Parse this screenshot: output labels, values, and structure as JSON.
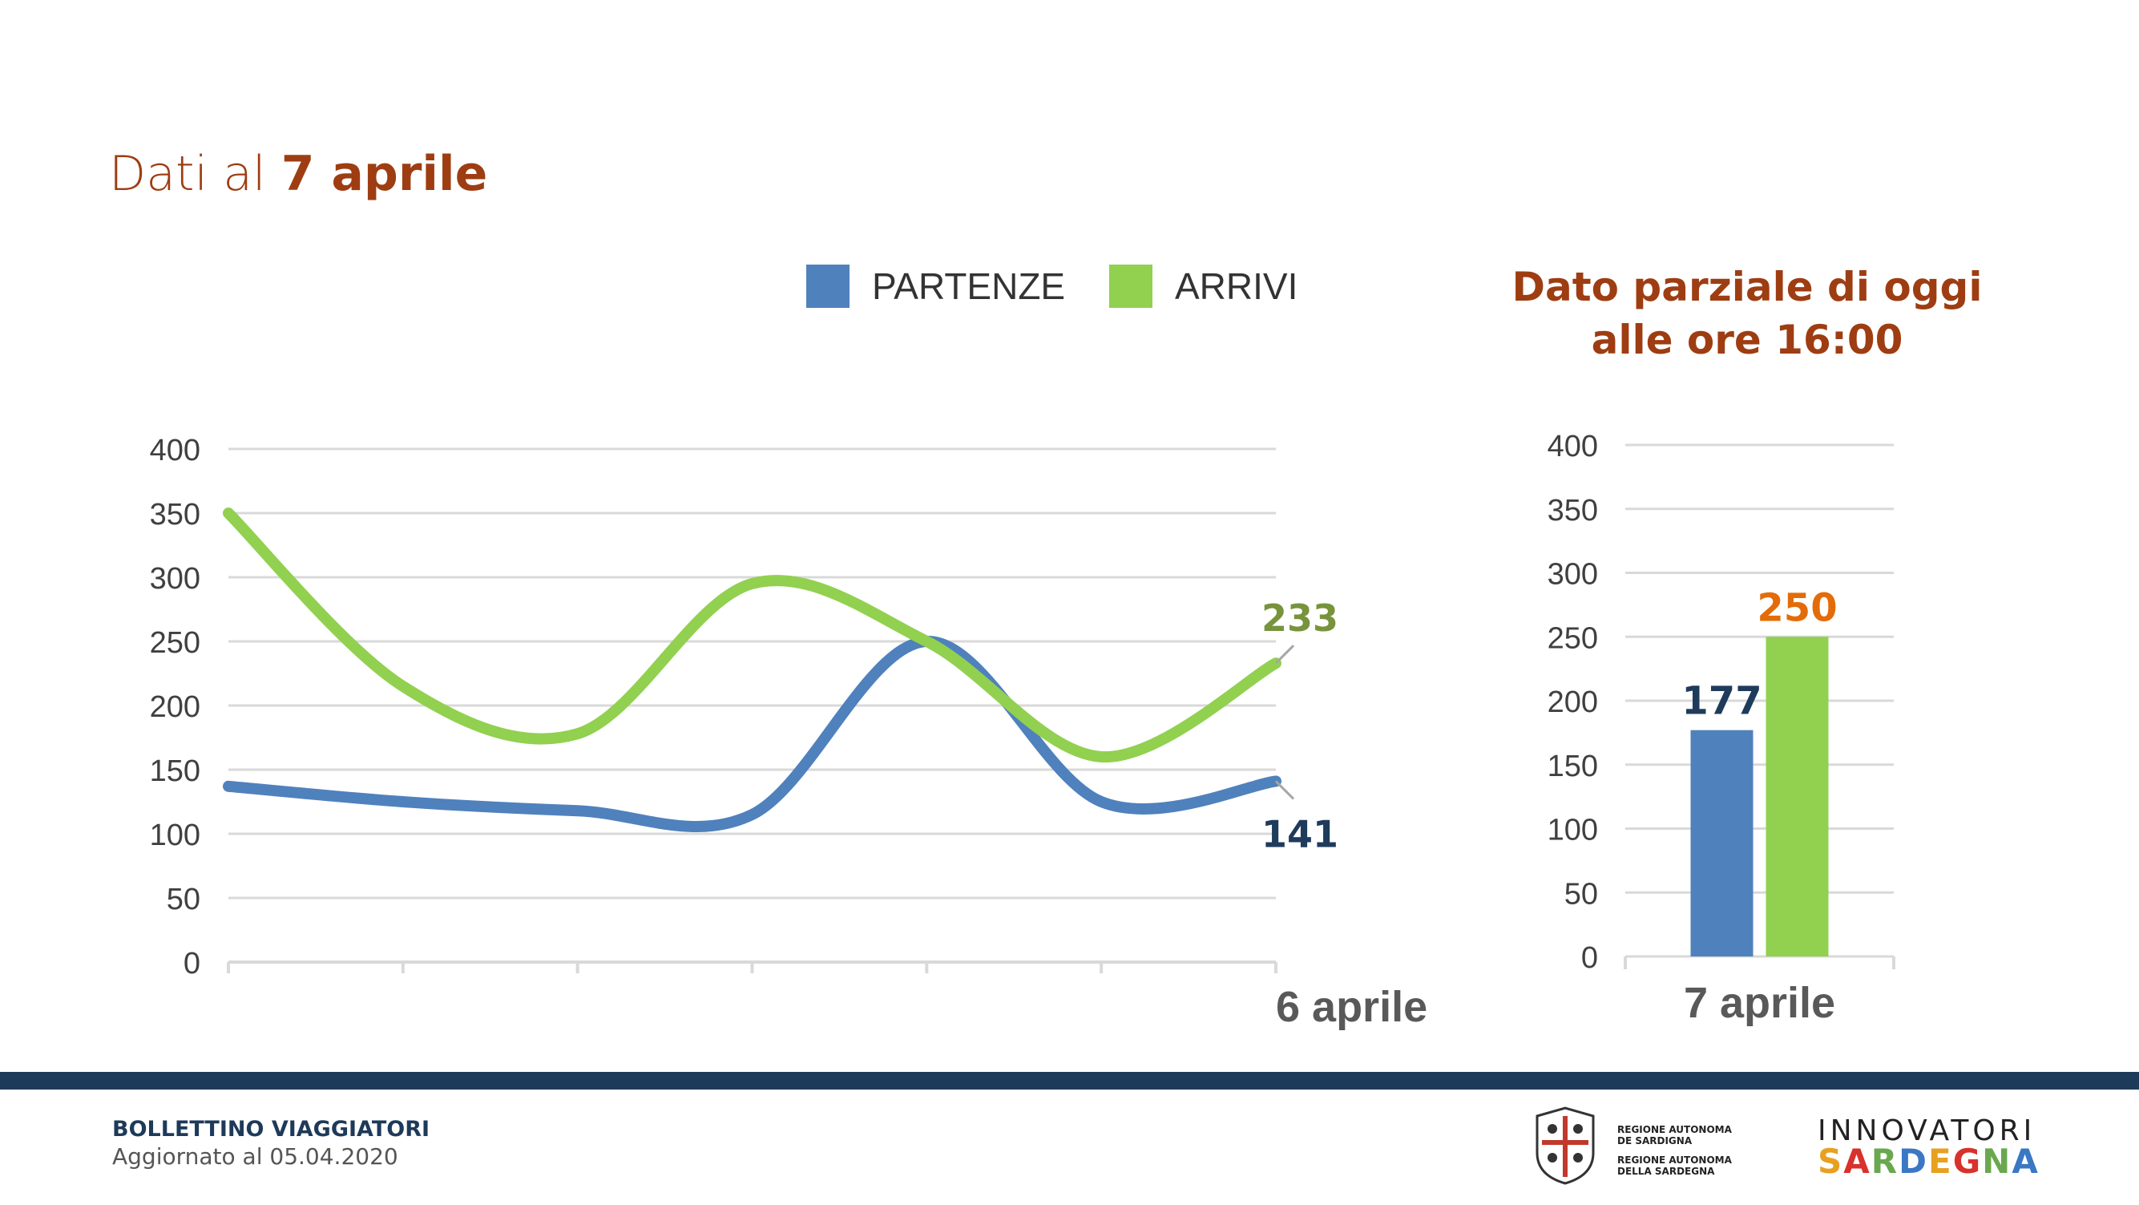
{
  "header": {
    "title_prefix": "Dati al",
    "title_bold": "7 aprile"
  },
  "side_header": {
    "line1": "Dato parziale di oggi",
    "line2": "alle ore 16:00"
  },
  "colors": {
    "partenze": "#4f81bd",
    "arrivi": "#92d050",
    "title": "#9e3d12",
    "footer": "#1e3a5a"
  },
  "chart_data": [
    {
      "type": "line",
      "legend": [
        "PARTENZE",
        "ARRIVI"
      ],
      "legend_position": "top",
      "x": [
        "",
        "",
        "",
        "",
        "",
        "",
        "6 aprile"
      ],
      "ylim": [
        0,
        400
      ],
      "yticks": [
        0,
        50,
        100,
        150,
        200,
        250,
        300,
        350,
        400
      ],
      "grid": true,
      "series": [
        {
          "name": "PARTENZE",
          "values": [
            137,
            125,
            118,
            115,
            250,
            125,
            141
          ],
          "end_label": "141",
          "label_color": "#1f3b5c"
        },
        {
          "name": "ARRIVI",
          "values": [
            350,
            215,
            178,
            295,
            250,
            160,
            233
          ],
          "end_label": "233",
          "label_color": "#77933c"
        }
      ]
    },
    {
      "type": "bar",
      "categories": [
        "7 aprile"
      ],
      "ylim": [
        0,
        400
      ],
      "yticks": [
        0,
        50,
        100,
        150,
        200,
        250,
        300,
        350,
        400
      ],
      "grid": true,
      "series": [
        {
          "name": "PARTENZE",
          "values": [
            177
          ],
          "label": "177",
          "label_color": "#1f3b5c"
        },
        {
          "name": "ARRIVI",
          "values": [
            250
          ],
          "label": "250",
          "label_color": "#e36c09"
        }
      ]
    }
  ],
  "footer": {
    "title": "BOLLETTINO VIAGGIATORI",
    "subtitle": "Aggiornato al 05.04.2020"
  },
  "logos": {
    "region_lines": [
      "REGIONE AUTONOMA",
      "DE SARDIGNA",
      "REGIONE AUTONOMA",
      "DELLA SARDEGNA"
    ],
    "innovatori": "INNOVATORI",
    "sardegna": [
      "S",
      "A",
      "R",
      "D",
      "E",
      "G",
      "N",
      "A"
    ]
  }
}
